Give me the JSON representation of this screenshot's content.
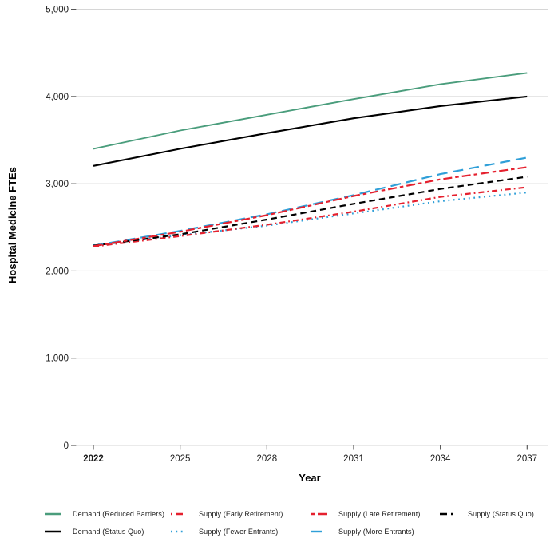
{
  "chart_data": {
    "type": "line",
    "title": "",
    "xlabel": "Year",
    "ylabel": "Hospital Medicine FTEs",
    "x": [
      2022,
      2025,
      2028,
      2031,
      2034,
      2037
    ],
    "xlim": [
      2022,
      2037
    ],
    "ylim": [
      0,
      5000
    ],
    "grid": "horizontal-only",
    "gridline_color": "#d6d6d6",
    "tick_color": "#4d4d4d",
    "x_ticks": [
      {
        "label": "2022",
        "year": 2022,
        "bold": true
      },
      {
        "label": "2025",
        "year": 2025,
        "bold": false
      },
      {
        "label": "2028",
        "year": 2028,
        "bold": false
      },
      {
        "label": "2031",
        "year": 2031,
        "bold": false
      },
      {
        "label": "2034",
        "year": 2034,
        "bold": false
      },
      {
        "label": "2037",
        "year": 2037,
        "bold": false
      }
    ],
    "y_ticks": [
      {
        "label": "0",
        "value": 0
      },
      {
        "label": "1,000",
        "value": 1000
      },
      {
        "label": "2,000",
        "value": 2000
      },
      {
        "label": "3,000",
        "value": 3000
      },
      {
        "label": "4,000",
        "value": 4000
      },
      {
        "label": "5,000",
        "value": 5000
      }
    ],
    "series": [
      {
        "id": "supply-more-entrants",
        "name": "Supply (More Entrants)",
        "color": "#2f9fd8",
        "width": 2.2,
        "dash": "13 7",
        "legend_dash": "14 99",
        "legend_len": 24,
        "values": [
          2290,
          2460,
          2650,
          2870,
          3110,
          3300
        ]
      },
      {
        "id": "supply-fewer-entrants",
        "name": "Supply (Fewer Entrants)",
        "color": "#2f9fd8",
        "width": 2.2,
        "dash": "1.8 4.6",
        "legend_dash": "1.8 4.6",
        "legend_len": 18,
        "values": [
          2295,
          2410,
          2520,
          2660,
          2800,
          2900
        ]
      },
      {
        "id": "supply-early-retirement",
        "name": "Supply (Early Retirement)",
        "color": "#e5202e",
        "width": 2.2,
        "dash": "7 4 1.8 4",
        "legend_dash": "2 4 9 99",
        "legend_len": 17,
        "values": [
          2280,
          2400,
          2530,
          2680,
          2850,
          2960
        ]
      },
      {
        "id": "supply-status-quo",
        "name": "Supply (Status Quo)",
        "color": "#000000",
        "width": 2.2,
        "dash": "7.5 5",
        "legend_dash": "9 5 2.2 99",
        "legend_len": 18,
        "values": [
          2290,
          2420,
          2590,
          2770,
          2940,
          3080
        ]
      },
      {
        "id": "supply-late-retirement",
        "name": "Supply (Late Retirement)",
        "color": "#e5202e",
        "width": 2.2,
        "dash": "11 4 4.5 4",
        "legend_dash": "5 4 12 99",
        "legend_len": 23,
        "values": [
          2285,
          2450,
          2640,
          2860,
          3050,
          3190
        ]
      },
      {
        "id": "demand-status-quo",
        "name": "Demand (Status Quo)",
        "color": "#000000",
        "width": 2.1,
        "dash": "",
        "legend_dash": "",
        "legend_len": 20,
        "values": [
          3205,
          3400,
          3580,
          3750,
          3890,
          4000
        ]
      },
      {
        "id": "demand-reduced-barriers",
        "name": "Demand (Reduced Barriers)",
        "color": "#4a9d7c",
        "width": 1.9,
        "dash": "",
        "legend_dash": "",
        "legend_len": 20,
        "values": [
          3400,
          3610,
          3790,
          3970,
          4140,
          4270
        ]
      }
    ],
    "legend": {
      "position": "bottom",
      "rows": [
        [
          "demand-reduced-barriers",
          "supply-early-retirement",
          "supply-late-retirement",
          "supply-status-quo"
        ],
        [
          "demand-status-quo",
          "supply-fewer-entrants",
          "supply-more-entrants"
        ]
      ]
    }
  }
}
